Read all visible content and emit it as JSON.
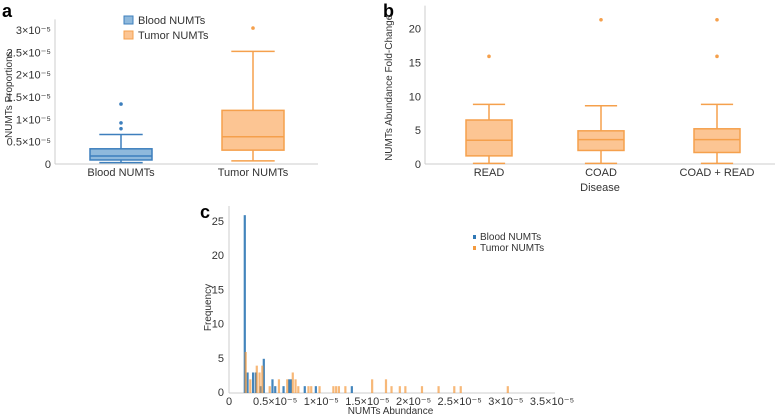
{
  "colors": {
    "blood_stroke": "#3d7fbd",
    "blood_fill": "#8fb9dc",
    "tumor_stroke": "#f5a04c",
    "tumor_fill": "#fcc593",
    "hist_blood": "#2f78b5",
    "hist_tumor": "#f39a3e"
  },
  "chart_data": [
    {
      "panel": "a",
      "type": "box",
      "ylabel": "NUMTs Proportions",
      "xlabel": "",
      "ylim": [
        0,
        3.1e-05
      ],
      "yticks": [
        0,
        5e-06,
        1e-05,
        1.5e-05,
        2e-05,
        2.5e-05,
        3e-05
      ],
      "ytick_labels": [
        "0",
        "0.5×10⁻⁵",
        "1×10⁻⁵",
        "1.5×10⁻⁵",
        "2×10⁻⁵",
        "2.5×10⁻⁵",
        "3×10⁻⁵"
      ],
      "legend": {
        "placement": "top-center",
        "entries": [
          "Blood NUMTs",
          "Tumor NUMTs"
        ]
      },
      "categories": [
        "Blood NUMTs",
        "Tumor NUMTs"
      ],
      "boxes": [
        {
          "name": "Blood NUMTs",
          "min": 3e-07,
          "q1": 9e-07,
          "median": 1.8e-06,
          "q3": 3.4e-06,
          "max": 6.6e-06,
          "outliers": [
            7.9e-06,
            9.2e-06,
            1.34e-05
          ],
          "color": "blood"
        },
        {
          "name": "Tumor NUMTs",
          "min": 7e-07,
          "q1": 3.1e-06,
          "median": 6.1e-06,
          "q3": 1.2e-05,
          "max": 2.52e-05,
          "outliers": [
            3.04e-05
          ],
          "color": "tumor"
        }
      ]
    },
    {
      "panel": "b",
      "type": "box",
      "ylabel": "NUMTs Abundance Fold-Change",
      "xlabel": "Disease",
      "ylim": [
        0,
        22.5
      ],
      "yticks": [
        0,
        5,
        10,
        15,
        20
      ],
      "ytick_labels": [
        "0",
        "5",
        "10",
        "15",
        "20"
      ],
      "categories": [
        "READ",
        "COAD",
        "COAD + READ"
      ],
      "boxes": [
        {
          "name": "READ",
          "min": 0.1,
          "q1": 1.2,
          "median": 3.5,
          "q3": 6.5,
          "max": 8.8,
          "outliers": [
            15.9
          ],
          "color": "tumor"
        },
        {
          "name": "COAD",
          "min": 0.1,
          "q1": 2.0,
          "median": 3.6,
          "q3": 4.9,
          "max": 8.6,
          "outliers": [
            21.3
          ],
          "color": "tumor"
        },
        {
          "name": "COAD + READ",
          "min": 0.1,
          "q1": 1.7,
          "median": 3.6,
          "q3": 5.2,
          "max": 8.8,
          "outliers": [
            15.9,
            21.3
          ],
          "color": "tumor"
        }
      ]
    },
    {
      "panel": "c",
      "type": "bar",
      "title": "",
      "xlabel": "NUMTs Abundance",
      "ylabel": "Frequency",
      "xlim": [
        0,
        3.5e-05
      ],
      "ylim": [
        0,
        27
      ],
      "xticks": [
        0,
        5e-06,
        1e-05,
        1.5e-05,
        2e-05,
        2.5e-05,
        3e-05,
        3.5e-05
      ],
      "xtick_labels": [
        "0",
        "0.5×10⁻⁵",
        "1×10⁻⁵",
        "1.5×10⁻⁵",
        "2×10⁻⁵",
        "2.5×10⁻⁵",
        "3×10⁻⁵",
        "3.5×10⁻⁵"
      ],
      "yticks": [
        0,
        5,
        10,
        15,
        20,
        25
      ],
      "ytick_labels": [
        "0",
        "5",
        "10",
        "15",
        "20",
        "25"
      ],
      "legend": {
        "placement": "top-right",
        "entries": [
          "Blood NUMTs",
          "Tumor NUMTs"
        ]
      },
      "series": [
        {
          "name": "Blood NUMTs",
          "color": "hist_blood",
          "x": [
            1.7e-06,
            2e-06,
            2.6e-06,
            2.9e-06,
            3.4e-06,
            3.76e-06,
            4.7e-06,
            5e-06,
            5.9e-06,
            6.5e-06,
            6.7e-06,
            8.2e-06,
            9.4e-06,
            1.33e-05
          ],
          "values": [
            26,
            3,
            3,
            3,
            1,
            5,
            2,
            1,
            1,
            2,
            2,
            1,
            1,
            1
          ]
        },
        {
          "name": "Tumor NUMTs",
          "color": "hist_tumor",
          "x": [
            1.8e-06,
            2.3e-06,
            3e-06,
            3.3e-06,
            3.6e-06,
            4.4e-06,
            5.4e-06,
            6.3e-06,
            6.9e-06,
            7.2e-06,
            7.5e-06,
            8.6e-06,
            8.9e-06,
            9.8e-06,
            1.13e-05,
            1.16e-05,
            1.19e-05,
            1.26e-05,
            1.55e-05,
            1.7e-05,
            1.76e-05,
            1.85e-05,
            1.91e-05,
            2.09e-05,
            2.27e-05,
            2.44e-05,
            2.51e-05,
            3.02e-05
          ],
          "values": [
            6,
            2,
            4,
            3,
            4,
            1,
            2,
            2,
            3,
            2,
            1,
            1,
            1,
            1,
            1,
            1,
            1,
            1,
            2,
            2,
            1,
            1,
            1,
            1,
            1,
            1,
            1,
            1
          ]
        }
      ]
    }
  ]
}
